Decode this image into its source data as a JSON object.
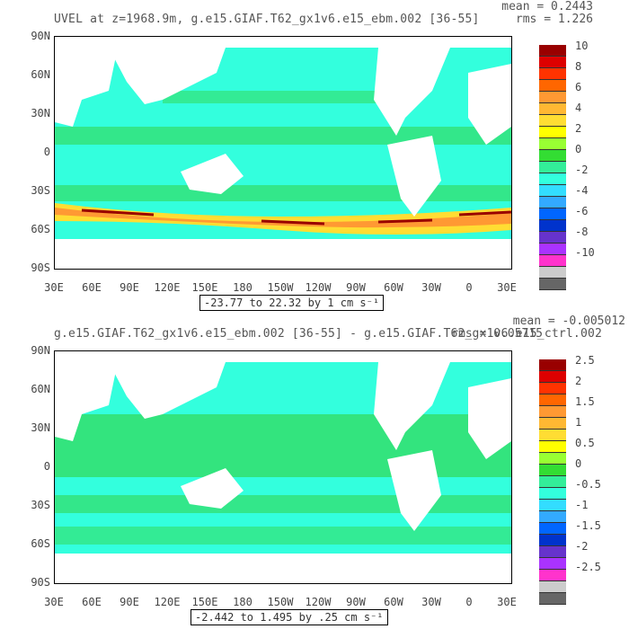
{
  "panels": [
    {
      "title": "UVEL at z=1968.9m, g.e15.GIAF.T62_gx1v6.e15_ebm.002 [36-55]",
      "mean": "mean = 0.2443",
      "rms": "rms = 1.226",
      "range": "-23.77 to 22.32 by 1 cm s⁻¹",
      "colorbar_labels": [
        "10",
        "8",
        "6",
        "4",
        "2",
        "0",
        "-2",
        "-4",
        "-6",
        "-8",
        "-10"
      ],
      "colors": [
        "#990000",
        "#dd0000",
        "#ff3300",
        "#ff6600",
        "#ff9933",
        "#ffb833",
        "#ffdd33",
        "#ffff00",
        "#99ff33",
        "#33dd33",
        "#33ee99",
        "#33ffdd",
        "#33ddff",
        "#33aaff",
        "#0066ff",
        "#0033cc",
        "#6633cc",
        "#aa33ff",
        "#ff33cc",
        "#cccccc",
        "#666666"
      ]
    },
    {
      "title": "g.e15.GIAF.T62_gx1v6.e15_ebm.002 [36-55] - g.e15.GIAF.T62_gx1v6.e15_ctrl.002",
      "mean": "mean = -0.005012",
      "rms": "rms = 0.05715",
      "range": "-2.442 to 1.495 by .25 cm s⁻¹",
      "colorbar_labels": [
        "2.5",
        "2",
        "1.5",
        "1",
        "0.5",
        "0",
        "-0.5",
        "-1",
        "-1.5",
        "-2",
        "-2.5"
      ],
      "colors": [
        "#990000",
        "#dd0000",
        "#ff3300",
        "#ff6600",
        "#ff9933",
        "#ffb833",
        "#ffdd33",
        "#ffff00",
        "#99ff33",
        "#33dd33",
        "#33ee99",
        "#33ffdd",
        "#33ddff",
        "#33aaff",
        "#0066ff",
        "#0033cc",
        "#6633cc",
        "#aa33ff",
        "#ff33cc",
        "#cccccc",
        "#666666"
      ]
    }
  ],
  "axes": {
    "y_labels": [
      "90N",
      "60N",
      "30N",
      "0",
      "30S",
      "60S",
      "90S"
    ],
    "x_labels": [
      "30E",
      "60E",
      "90E",
      "120E",
      "150E",
      "180",
      "150W",
      "120W",
      "90W",
      "60W",
      "30W",
      "0",
      "30E"
    ]
  },
  "map_colors": {
    "ocean_main": "#33ffdd",
    "ocean_band": "#33dd66",
    "land": "#ffffff",
    "acc_red": "#dd0000",
    "acc_orange": "#ff9933",
    "acc_yellow": "#ffff00"
  }
}
